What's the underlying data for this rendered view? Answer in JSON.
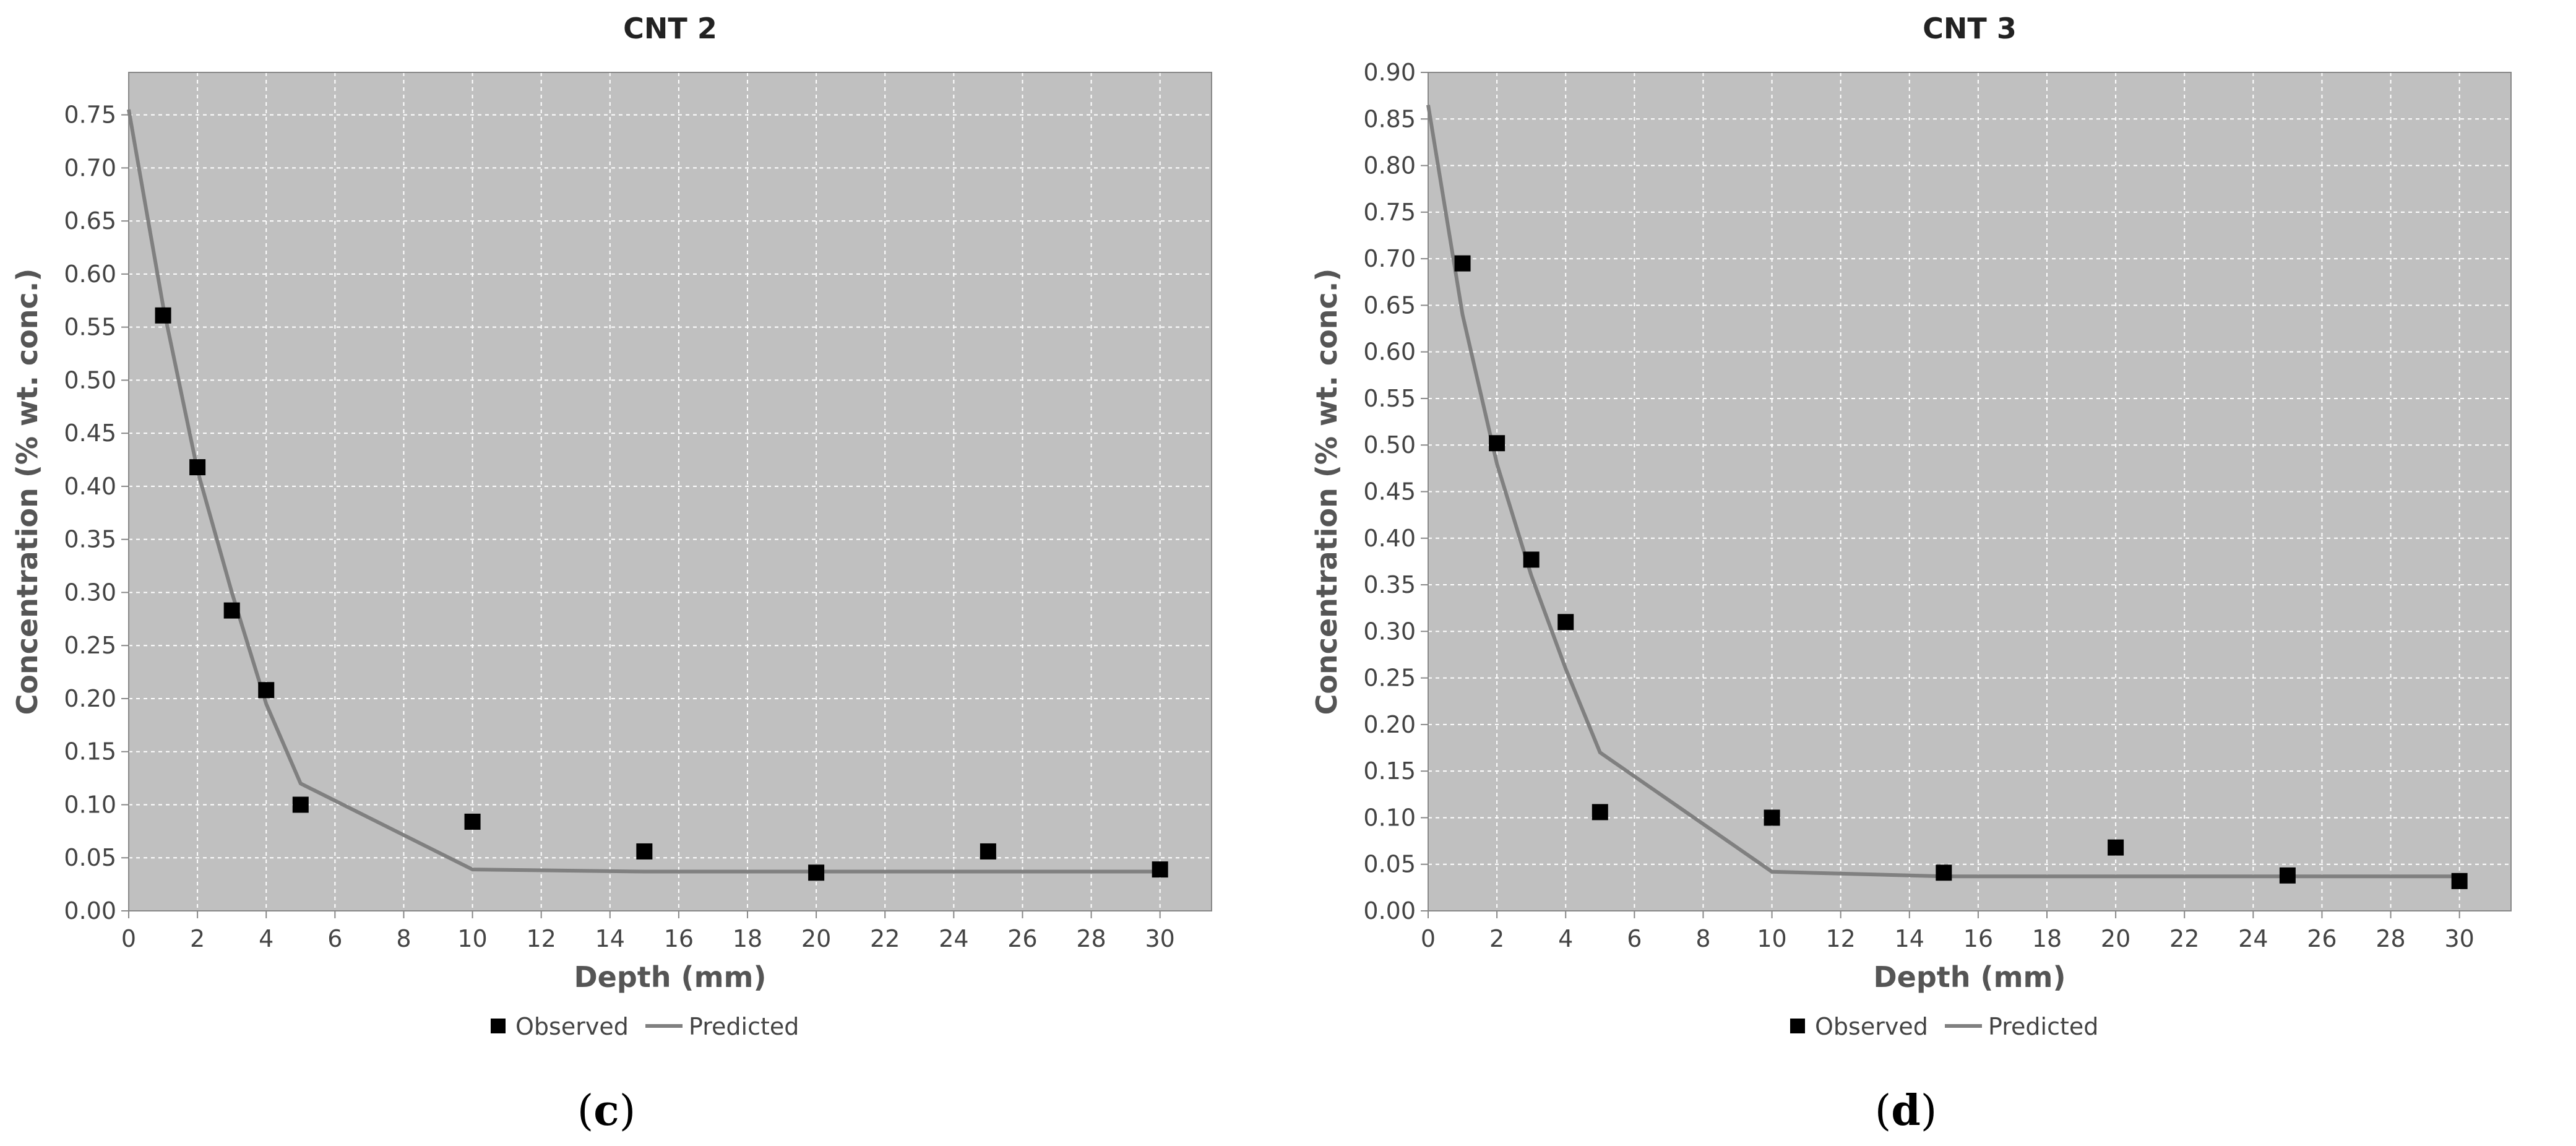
{
  "chart_data": [
    {
      "type": "scatter+line",
      "title": "CNT 2",
      "xlabel": "Depth (mm)",
      "ylabel": "Concentration (% wt. conc.)",
      "xlim": [
        0,
        31.5
      ],
      "ylim": [
        0,
        0.79
      ],
      "xticks": [
        0,
        2,
        4,
        6,
        8,
        10,
        12,
        14,
        16,
        18,
        20,
        22,
        24,
        26,
        28,
        30
      ],
      "yticks": [
        0,
        0.05,
        0.1,
        0.15,
        0.2,
        0.25,
        0.3,
        0.35,
        0.4,
        0.45,
        0.5,
        0.55,
        0.6,
        0.65,
        0.7,
        0.75
      ],
      "grid": true,
      "legend_placement": "bottom",
      "series": [
        {
          "name": "Observed",
          "kind": "scatter",
          "color": "#000000",
          "x": [
            1,
            2,
            3,
            4,
            5,
            10,
            15,
            20,
            25,
            30
          ],
          "y": [
            0.561,
            0.418,
            0.283,
            0.208,
            0.1,
            0.084,
            0.056,
            0.036,
            0.056,
            0.039
          ]
        },
        {
          "name": "Predicted",
          "kind": "line",
          "color": "#808080",
          "x": [
            0,
            1,
            2,
            3,
            4,
            5,
            10,
            15,
            20,
            25,
            30
          ],
          "y": [
            0.755,
            0.57,
            0.415,
            0.3,
            0.195,
            0.12,
            0.039,
            0.037,
            0.037,
            0.037,
            0.037
          ]
        }
      ],
      "caption": "c"
    },
    {
      "type": "scatter+line",
      "title": "CNT 3",
      "xlabel": "Depth (mm)",
      "ylabel": "Concentration (% wt. conc.)",
      "xlim": [
        0,
        31.5
      ],
      "ylim": [
        0,
        0.9
      ],
      "xticks": [
        0,
        2,
        4,
        6,
        8,
        10,
        12,
        14,
        16,
        18,
        20,
        22,
        24,
        26,
        28,
        30
      ],
      "yticks": [
        0,
        0.05,
        0.1,
        0.15,
        0.2,
        0.25,
        0.3,
        0.35,
        0.4,
        0.45,
        0.5,
        0.55,
        0.6,
        0.65,
        0.7,
        0.75,
        0.8,
        0.85,
        0.9
      ],
      "grid": true,
      "legend_placement": "bottom",
      "series": [
        {
          "name": "Observed",
          "kind": "scatter",
          "color": "#000000",
          "x": [
            1,
            2,
            3,
            4,
            5,
            10,
            15,
            20,
            25,
            30
          ],
          "y": [
            0.695,
            0.502,
            0.377,
            0.31,
            0.106,
            0.1,
            0.041,
            0.068,
            0.038,
            0.032
          ]
        },
        {
          "name": "Predicted",
          "kind": "line",
          "color": "#808080",
          "x": [
            0,
            1,
            2,
            3,
            4,
            5,
            10,
            15,
            20,
            25,
            30
          ],
          "y": [
            0.865,
            0.64,
            0.48,
            0.36,
            0.26,
            0.17,
            0.042,
            0.037,
            0.037,
            0.037,
            0.037
          ]
        }
      ],
      "caption": "d"
    }
  ],
  "colors": {
    "plot_background": "#c0c0c0",
    "gridline": "#ffffff"
  }
}
